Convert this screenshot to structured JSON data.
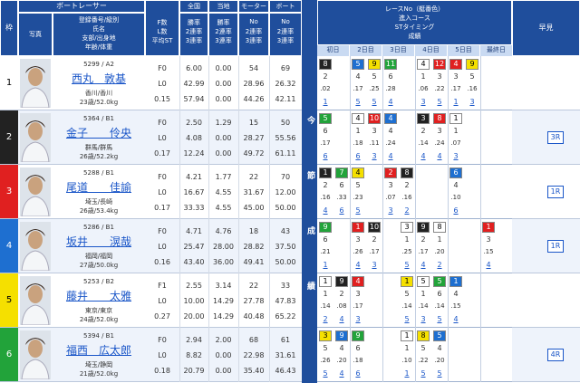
{
  "header": {
    "waku": "枠",
    "photo": "写真",
    "racer": "ボートレーサー",
    "racer_sub": [
      "登録番号/級別",
      "氏名",
      "支部/出身地",
      "年齢/体重"
    ],
    "fl": [
      "F数",
      "L数",
      "平均ST"
    ],
    "national": "全国",
    "local": "当地",
    "rate_sub": [
      "勝率",
      "2連率",
      "3連率"
    ],
    "motor": "モーター",
    "boat": "ボート",
    "eq_sub": [
      "No",
      "2連率",
      "3連率"
    ],
    "current": "今節成績",
    "current_sub": [
      "レースNo（艇番色）",
      "進入コース",
      "STタイミング",
      "成績"
    ],
    "days": [
      "初日",
      "2日目",
      "3日目",
      "4日目",
      "5日目",
      "最終日"
    ],
    "quick": "早見"
  },
  "racers": [
    {
      "waku": 1,
      "frame_color": "#ffffff",
      "id_class": "5299 / A2",
      "name": "西丸　敦基",
      "branch": "香川/香川",
      "age_weight": "23歳/52.0kg",
      "f": "F0",
      "l": "L0",
      "st": "0.15",
      "national": [
        "6.00",
        "42.99",
        "57.94"
      ],
      "local": [
        "0.00",
        "0.00",
        "0.00"
      ],
      "motor": [
        "54",
        "28.96",
        "44.26"
      ],
      "boat": [
        "69",
        "26.32",
        "42.11"
      ],
      "results": [
        {
          "race": "8",
          "color": "#222222",
          "course": "2",
          "st": ".02",
          "rank": "1"
        },
        null,
        {
          "race": "5",
          "color": "#1e6fd0",
          "course": "4",
          "st": ".17",
          "rank": "5"
        },
        {
          "race": "9",
          "color": "#f5e000",
          "course": "5",
          "st": ".25",
          "rank": "5"
        },
        {
          "race": "11",
          "color": "#22a33a",
          "course": "6",
          "st": ".28",
          "rank": "4"
        },
        null,
        {
          "race": "4",
          "color": "#ffffff",
          "course": "1",
          "st": ".06",
          "rank": "3"
        },
        {
          "race": "12",
          "color": "#e02020",
          "course": "3",
          "st": ".22",
          "rank": "5"
        },
        {
          "race": "4",
          "color": "#e02020",
          "course": "3",
          "st": ".17",
          "rank": "1"
        },
        {
          "race": "9",
          "color": "#f5e000",
          "course": "5",
          "st": ".16",
          "rank": "3"
        },
        null,
        null
      ]
    },
    {
      "waku": 2,
      "frame_color": "#222222",
      "id_class": "5364 / B1",
      "name": "金子　　伶央",
      "branch": "群馬/群馬",
      "age_weight": "26歳/52.2kg",
      "f": "F0",
      "l": "L0",
      "st": "0.17",
      "national": [
        "2.50",
        "4.08",
        "12.24"
      ],
      "local": [
        "1.29",
        "0.00",
        "0.00"
      ],
      "motor": [
        "15",
        "28.27",
        "49.72"
      ],
      "boat": [
        "50",
        "55.56",
        "61.11"
      ],
      "results": [
        {
          "race": "5",
          "color": "#22a33a",
          "course": "6",
          "st": ".17",
          "rank": "6"
        },
        null,
        {
          "race": "4",
          "color": "#ffffff",
          "course": "1",
          "st": ".18",
          "rank": "6"
        },
        {
          "race": "10",
          "color": "#e02020",
          "course": "3",
          "st": ".11",
          "rank": "3"
        },
        {
          "race": "4",
          "color": "#1e6fd0",
          "course": "4",
          "st": ".24",
          "rank": "4"
        },
        null,
        {
          "race": "3",
          "color": "#222222",
          "course": "2",
          "st": ".14",
          "rank": "4"
        },
        {
          "race": "8",
          "color": "#e02020",
          "course": "3",
          "st": ".24",
          "rank": "4"
        },
        {
          "race": "1",
          "color": "#ffffff",
          "course": "1",
          "st": ".07",
          "rank": "3"
        },
        null,
        null,
        null
      ],
      "quick": "3R"
    },
    {
      "waku": 3,
      "frame_color": "#e02020",
      "id_class": "5288 / B1",
      "name": "尾道　　佳諭",
      "branch": "埼玉/長崎",
      "age_weight": "26歳/53.4kg",
      "f": "F0",
      "l": "L0",
      "st": "0.17",
      "national": [
        "4.21",
        "16.67",
        "33.33"
      ],
      "local": [
        "1.77",
        "4.55",
        "4.55"
      ],
      "motor": [
        "22",
        "31.67",
        "45.00"
      ],
      "boat": [
        "70",
        "12.00",
        "50.00"
      ],
      "results": [
        {
          "race": "1",
          "color": "#222222",
          "course": "2",
          "st": ".16",
          "rank": "4"
        },
        {
          "race": "7",
          "color": "#22a33a",
          "course": "6",
          "st": ".33",
          "rank": "6"
        },
        {
          "race": "4",
          "color": "#f5e000",
          "course": "5",
          "st": ".23",
          "rank": "5"
        },
        null,
        {
          "race": "2",
          "color": "#e02020",
          "course": "3",
          "st": ".07",
          "rank": "3"
        },
        {
          "race": "8",
          "color": "#222222",
          "course": "2",
          "st": ".16",
          "rank": "2"
        },
        null,
        null,
        {
          "race": "6",
          "color": "#1e6fd0",
          "course": "4",
          "st": ".10",
          "rank": "6"
        },
        null,
        null,
        null
      ],
      "quick": "1R"
    },
    {
      "waku": 4,
      "frame_color": "#1e6fd0",
      "id_class": "5286 / B1",
      "name": "坂井　　滉哉",
      "branch": "福岡/福岡",
      "age_weight": "27歳/50.0kg",
      "f": "F0",
      "l": "L0",
      "st": "0.16",
      "national": [
        "4.71",
        "25.47",
        "43.40"
      ],
      "local": [
        "4.76",
        "28.00",
        "36.00"
      ],
      "motor": [
        "18",
        "28.82",
        "49.41"
      ],
      "boat": [
        "43",
        "37.50",
        "50.00"
      ],
      "results": [
        {
          "race": "9",
          "color": "#22a33a",
          "course": "6",
          "st": ".21",
          "rank": "1"
        },
        null,
        {
          "race": "1",
          "color": "#e02020",
          "course": "3",
          "st": ".26",
          "rank": "4"
        },
        {
          "race": "10",
          "color": "#222222",
          "course": "2",
          "st": ".17",
          "rank": "3"
        },
        null,
        {
          "race": "3",
          "color": "#ffffff",
          "course": "1",
          "st": ".25",
          "rank": "5"
        },
        {
          "race": "9",
          "color": "#222222",
          "course": "2",
          "st": ".17",
          "rank": "4"
        },
        {
          "race": "8",
          "color": "#ffffff",
          "course": "1",
          "st": ".20",
          "rank": "2"
        },
        null,
        null,
        {
          "race": "1",
          "color": "#e02020",
          "course": "3",
          "st": ".15",
          "rank": "4"
        },
        null
      ],
      "quick": "1R"
    },
    {
      "waku": 5,
      "frame_color": "#f5e000",
      "id_class": "5253 / B2",
      "name": "藤井　　太雅",
      "branch": "東京/東京",
      "age_weight": "24歳/52.0kg",
      "f": "F1",
      "l": "L0",
      "st": "0.27",
      "national": [
        "2.55",
        "10.00",
        "20.00"
      ],
      "local": [
        "3.14",
        "14.29",
        "14.29"
      ],
      "motor": [
        "22",
        "27.78",
        "40.48"
      ],
      "boat": [
        "33",
        "47.83",
        "65.22"
      ],
      "results": [
        {
          "race": "1",
          "color": "#ffffff",
          "course": "1",
          "st": ".14",
          "rank": "2"
        },
        {
          "race": "9",
          "color": "#222222",
          "course": "2",
          "st": ".08",
          "rank": "4"
        },
        {
          "race": "4",
          "color": "#e02020",
          "course": "3",
          "st": ".17",
          "rank": "3"
        },
        null,
        null,
        {
          "race": "1",
          "color": "#f5e000",
          "course": "5",
          "st": ".14",
          "rank": "5"
        },
        {
          "race": "5",
          "color": "#ffffff",
          "course": "1",
          "st": ".14",
          "rank": "3"
        },
        {
          "race": "5",
          "color": "#22a33a",
          "course": "6",
          "st": ".14",
          "rank": "5"
        },
        {
          "race": "1",
          "color": "#1e6fd0",
          "course": "4",
          "st": ".15",
          "rank": "4"
        },
        null,
        null,
        null
      ]
    },
    {
      "waku": 6,
      "frame_color": "#22a33a",
      "id_class": "5394 / B1",
      "name": "福西　広太郎",
      "branch": "埼玉/静岡",
      "age_weight": "21歳/52.0kg",
      "f": "F0",
      "l": "L0",
      "st": "0.18",
      "national": [
        "2.94",
        "8.82",
        "20.79"
      ],
      "local": [
        "2.00",
        "0.00",
        "0.00"
      ],
      "motor": [
        "68",
        "22.98",
        "35.40"
      ],
      "boat": [
        "61",
        "31.61",
        "46.43"
      ],
      "results": [
        {
          "race": "3",
          "color": "#f5e000",
          "course": "5",
          "st": ".26",
          "rank": "5"
        },
        {
          "race": "9",
          "color": "#1e6fd0",
          "course": "4",
          "st": ".20",
          "rank": "4"
        },
        {
          "race": "9",
          "color": "#22a33a",
          "course": "6",
          "st": ".18",
          "rank": "6"
        },
        null,
        null,
        {
          "race": "1",
          "color": "#ffffff",
          "course": "1",
          "st": ".10",
          "rank": "1"
        },
        {
          "race": "8",
          "color": "#f5e000",
          "course": "5",
          "st": ".22",
          "rank": "5"
        },
        {
          "race": "5",
          "color": "#1e6fd0",
          "course": "4",
          "st": ".20",
          "rank": "5"
        },
        null,
        null,
        null,
        null
      ],
      "quick": "4R"
    }
  ]
}
